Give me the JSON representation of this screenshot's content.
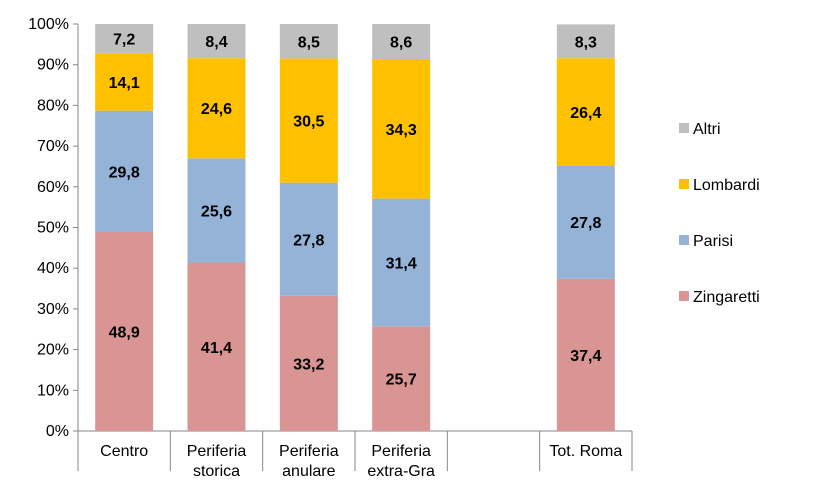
{
  "chart_data": {
    "type": "bar",
    "stacked": true,
    "percent_axis": true,
    "ylim": [
      0,
      100
    ],
    "yticks": [
      "0%",
      "10%",
      "20%",
      "30%",
      "40%",
      "50%",
      "60%",
      "70%",
      "80%",
      "90%",
      "100%"
    ],
    "grid": false,
    "legend_position": "right",
    "categories": [
      [
        "Centro"
      ],
      [
        "Periferia",
        "storica"
      ],
      [
        "Periferia",
        "anulare"
      ],
      [
        "Periferia",
        "extra-Gra"
      ],
      [
        ""
      ],
      [
        "Tot. Roma"
      ]
    ],
    "series": [
      {
        "name": "Zingaretti",
        "color": "#D99594",
        "values": [
          48.9,
          41.4,
          33.2,
          25.7,
          null,
          37.4
        ],
        "labels": [
          "48,9",
          "41,4",
          "33,2",
          "25,7",
          "",
          "37,4"
        ]
      },
      {
        "name": "Parisi",
        "color": "#95B3D7",
        "values": [
          29.8,
          25.6,
          27.8,
          31.4,
          null,
          27.8
        ],
        "labels": [
          "29,8",
          "25,6",
          "27,8",
          "31,4",
          "",
          "27,8"
        ]
      },
      {
        "name": "Lombardi",
        "color": "#FFC000",
        "values": [
          14.1,
          24.6,
          30.5,
          34.3,
          null,
          26.4
        ],
        "labels": [
          "14,1",
          "24,6",
          "30,5",
          "34,3",
          "",
          "26,4"
        ]
      },
      {
        "name": "Altri",
        "color": "#BFBFBF",
        "values": [
          7.2,
          8.4,
          8.5,
          8.6,
          null,
          8.3
        ],
        "labels": [
          "7,2",
          "8,4",
          "8,5",
          "8,6",
          "",
          "8,3"
        ]
      }
    ],
    "legend_order": [
      "Altri",
      "Lombardi",
      "Parisi",
      "Zingaretti"
    ]
  }
}
